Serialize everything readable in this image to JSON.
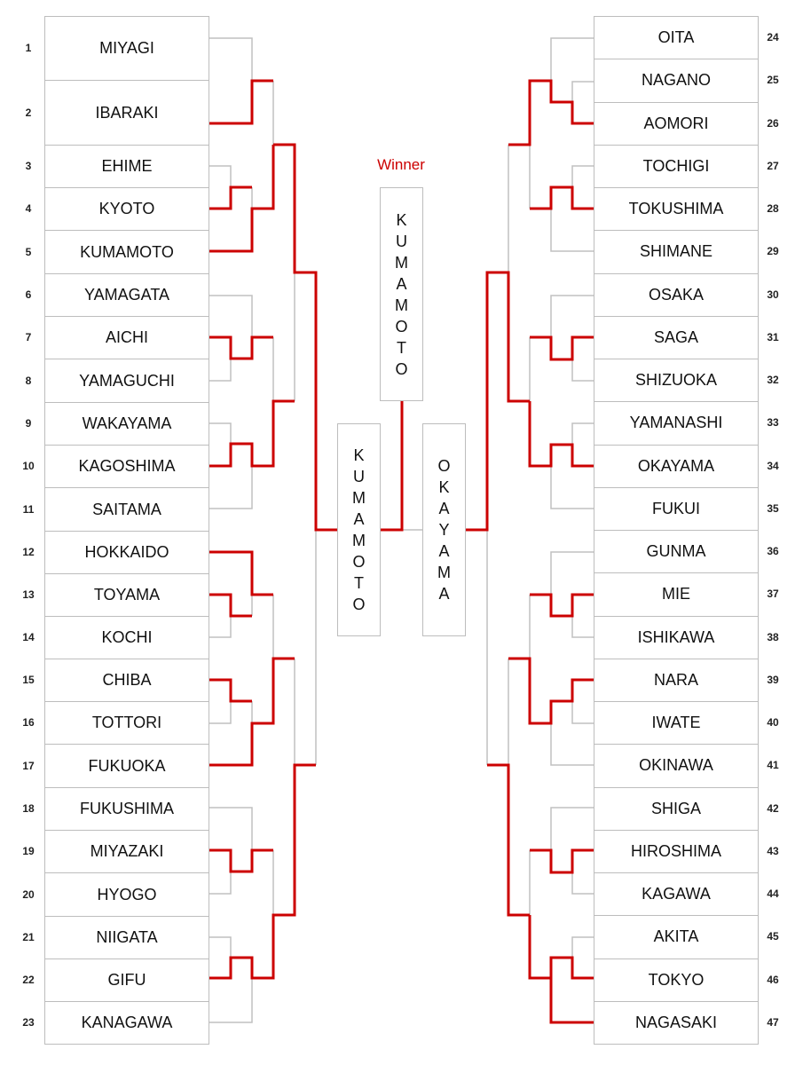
{
  "winner_label": "Winner",
  "champion": "KUMAMOTO",
  "finalists": {
    "left": "KUMAMOTO",
    "right": "OKAYAMA"
  },
  "colors": {
    "win_line": "#cc0000",
    "lose_line": "#c0c0c0",
    "winner_label": "#cc0000"
  },
  "left_teams": [
    {
      "seed": "1",
      "name": "MIYAGI"
    },
    {
      "seed": "2",
      "name": "IBARAKI"
    },
    {
      "seed": "3",
      "name": "EHIME"
    },
    {
      "seed": "4",
      "name": "KYOTO"
    },
    {
      "seed": "5",
      "name": "KUMAMOTO"
    },
    {
      "seed": "6",
      "name": "YAMAGATA"
    },
    {
      "seed": "7",
      "name": "AICHI"
    },
    {
      "seed": "8",
      "name": "YAMAGUCHI"
    },
    {
      "seed": "9",
      "name": "WAKAYAMA"
    },
    {
      "seed": "10",
      "name": "KAGOSHIMA"
    },
    {
      "seed": "11",
      "name": "SAITAMA"
    },
    {
      "seed": "12",
      "name": "HOKKAIDO"
    },
    {
      "seed": "13",
      "name": "TOYAMA"
    },
    {
      "seed": "14",
      "name": "KOCHI"
    },
    {
      "seed": "15",
      "name": "CHIBA"
    },
    {
      "seed": "16",
      "name": "TOTTORI"
    },
    {
      "seed": "17",
      "name": "FUKUOKA"
    },
    {
      "seed": "18",
      "name": "FUKUSHIMA"
    },
    {
      "seed": "19",
      "name": "MIYAZAKI"
    },
    {
      "seed": "20",
      "name": "HYOGO"
    },
    {
      "seed": "21",
      "name": "NIIGATA"
    },
    {
      "seed": "22",
      "name": "GIFU"
    },
    {
      "seed": "23",
      "name": "KANAGAWA"
    }
  ],
  "right_teams": [
    {
      "seed": "24",
      "name": "OITA"
    },
    {
      "seed": "25",
      "name": "NAGANO"
    },
    {
      "seed": "26",
      "name": "AOMORI"
    },
    {
      "seed": "27",
      "name": "TOCHIGI"
    },
    {
      "seed": "28",
      "name": "TOKUSHIMA"
    },
    {
      "seed": "29",
      "name": "SHIMANE"
    },
    {
      "seed": "30",
      "name": "OSAKA"
    },
    {
      "seed": "31",
      "name": "SAGA"
    },
    {
      "seed": "32",
      "name": "SHIZUOKA"
    },
    {
      "seed": "33",
      "name": "YAMANASHI"
    },
    {
      "seed": "34",
      "name": "OKAYAMA"
    },
    {
      "seed": "35",
      "name": "FUKUI"
    },
    {
      "seed": "36",
      "name": "GUNMA"
    },
    {
      "seed": "37",
      "name": "MIE"
    },
    {
      "seed": "38",
      "name": "ISHIKAWA"
    },
    {
      "seed": "39",
      "name": "NARA"
    },
    {
      "seed": "40",
      "name": "IWATE"
    },
    {
      "seed": "41",
      "name": "OKINAWA"
    },
    {
      "seed": "42",
      "name": "SHIGA"
    },
    {
      "seed": "43",
      "name": "HIROSHIMA"
    },
    {
      "seed": "44",
      "name": "KAGAWA"
    },
    {
      "seed": "45",
      "name": "AKITA"
    },
    {
      "seed": "46",
      "name": "TOKYO"
    },
    {
      "seed": "47",
      "name": "NAGASAKI"
    }
  ]
}
